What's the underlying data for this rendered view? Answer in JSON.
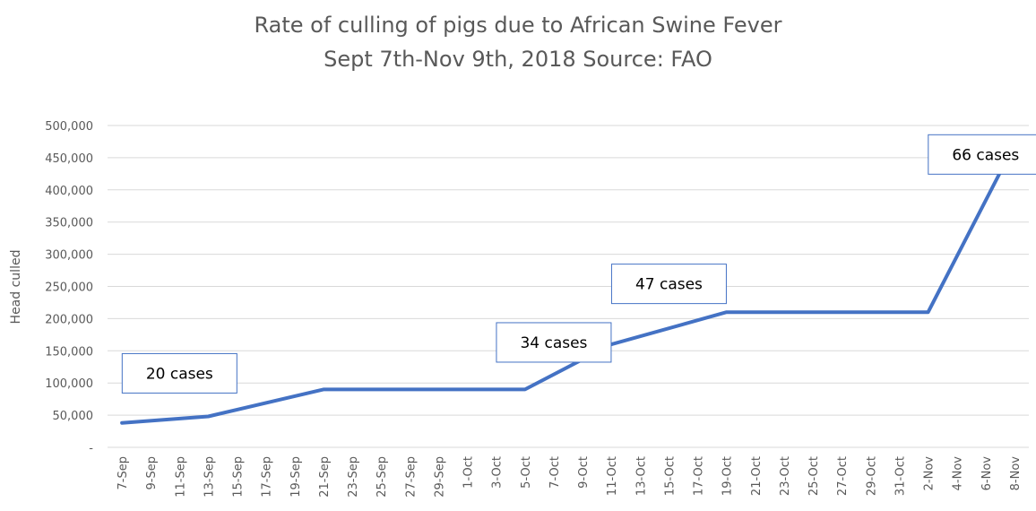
{
  "chart_data": {
    "type": "line",
    "title": "Rate of culling of pigs due to African Swine Fever",
    "subtitle": "Sept 7th-Nov 9th, 2018 Source: FAO",
    "ylabel": "Head culled",
    "xlabel": "",
    "ylim": [
      0,
      500000
    ],
    "y_ticks": [
      0,
      50000,
      100000,
      150000,
      200000,
      250000,
      300000,
      350000,
      400000,
      450000,
      500000
    ],
    "y_tick_labels": [
      "-",
      "50,000",
      "100,000",
      "150,000",
      "200,000",
      "250,000",
      "300,000",
      "350,000",
      "400,000",
      "450,000",
      "500,000"
    ],
    "grid": true,
    "legend": "none",
    "color": "#4472c4",
    "categories": [
      "7-Sep",
      "9-Sep",
      "11-Sep",
      "13-Sep",
      "15-Sep",
      "17-Sep",
      "19-Sep",
      "21-Sep",
      "23-Sep",
      "25-Sep",
      "27-Sep",
      "29-Sep",
      "1-Oct",
      "3-Oct",
      "5-Oct",
      "7-Oct",
      "9-Oct",
      "11-Oct",
      "13-Oct",
      "15-Oct",
      "17-Oct",
      "19-Oct",
      "21-Oct",
      "23-Oct",
      "25-Oct",
      "27-Oct",
      "29-Oct",
      "31-Oct",
      "2-Nov",
      "4-Nov",
      "6-Nov",
      "8-Nov"
    ],
    "points": [
      {
        "x": "7-Sep",
        "y": 38000
      },
      {
        "x": "13-Sep",
        "y": 48000
      },
      {
        "x": "21-Sep",
        "y": 90000
      },
      {
        "x": "5-Oct",
        "y": 90000
      },
      {
        "x": "11-Oct",
        "y": 160000
      },
      {
        "x": "19-Oct",
        "y": 210000
      },
      {
        "x": "2-Nov",
        "y": 210000
      },
      {
        "x": "8-Nov",
        "y": 470000
      }
    ],
    "annotations": [
      {
        "text": "20 cases",
        "x": "11-Sep",
        "y": 115000
      },
      {
        "text": "34 cases",
        "x": "7-Oct",
        "y": 163000
      },
      {
        "text": "47 cases",
        "x": "15-Oct",
        "y": 254000
      },
      {
        "text": "66 cases",
        "x": "6-Nov",
        "y": 455000
      }
    ]
  }
}
